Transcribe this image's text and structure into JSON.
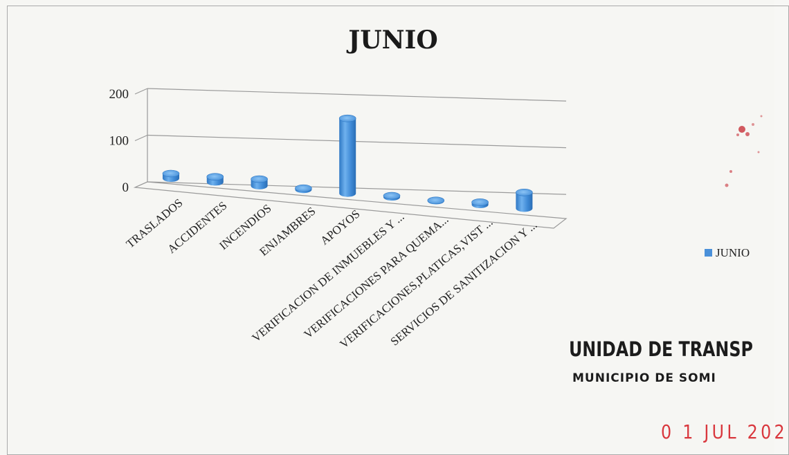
{
  "chart_data": {
    "type": "bar",
    "title": "JUNIO",
    "categories": [
      "TRASLADOS",
      "ACCIDENTES",
      "INCENDIOS",
      "ENJAMBRES",
      "APOYOS",
      "VERIFICACION DE INMUEBLES Y ...",
      "VERIFICACIONES PARA QUEMA...",
      "VERIFICACIONES,PLATICAS,VIST ...",
      "SERVICIOS DE SANITIZACION Y ..."
    ],
    "series": [
      {
        "name": "JUNIO",
        "color": "#4a90d9",
        "values": [
          10,
          11,
          14,
          3,
          155,
          3,
          1,
          5,
          33
        ]
      }
    ],
    "y_ticks": [
      "0",
      "100",
      "200"
    ],
    "ylim": [
      0,
      200
    ],
    "legend_position": "right",
    "grid": true,
    "style": "3d-cylinder"
  },
  "stamp": {
    "line1": "UNIDAD DE TRANSP",
    "line2": "MUNICIPIO DE SOMI",
    "date": "0 1 JUL 202",
    "date_color": "#d9373d"
  }
}
